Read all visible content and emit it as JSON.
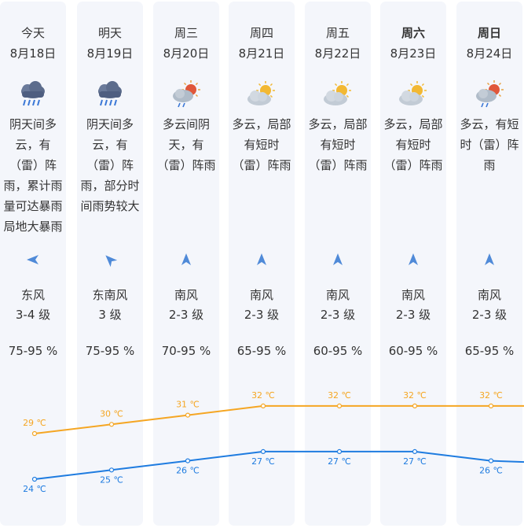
{
  "colors": {
    "high": "#f5a623",
    "low": "#1f7ce0",
    "column_bg": "#f4f6fb",
    "icon_cloud": "#b0bcc9",
    "rain": "#3a77d6",
    "arrow": "#4f8ad8"
  },
  "days": [
    {
      "day": "今天",
      "date": "8月18日",
      "icon": "rain-cloud-icon",
      "desc": "阴天间多云，有（雷）阵雨，累计雨量可达暴雨局地大暴雨",
      "wind": "东风",
      "level": "3-4 级",
      "humidity": "75-95 %",
      "high": 29,
      "low": 24,
      "high_label": "29 ℃",
      "low_label": "24 ℃",
      "wind_dir": "east"
    },
    {
      "day": "明天",
      "date": "8月19日",
      "icon": "rain-cloud-icon",
      "desc": "阴天间多云，有（雷）阵雨，部分时间雨势较大",
      "wind": "东南风",
      "level": "3 级",
      "humidity": "75-95 %",
      "high": 30,
      "low": 25,
      "high_label": "30 ℃",
      "low_label": "25 ℃",
      "wind_dir": "southeast"
    },
    {
      "day": "周三",
      "date": "8月20日",
      "icon": "sun-cloud-rain-icon",
      "desc": "多云间阴天，有（雷）阵雨",
      "wind": "南风",
      "level": "2-3 级",
      "humidity": "70-95 %",
      "high": 31,
      "low": 26,
      "high_label": "31 ℃",
      "low_label": "26 ℃",
      "wind_dir": "south"
    },
    {
      "day": "周四",
      "date": "8月21日",
      "icon": "sun-cloud-icon",
      "desc": "多云，局部有短时（雷）阵雨",
      "wind": "南风",
      "level": "2-3 级",
      "humidity": "65-95 %",
      "high": 32,
      "low": 27,
      "high_label": "32 ℃",
      "low_label": "27 ℃",
      "wind_dir": "south"
    },
    {
      "day": "周五",
      "date": "8月22日",
      "icon": "sun-cloud-icon",
      "desc": "多云，局部有短时（雷）阵雨",
      "wind": "南风",
      "level": "2-3 级",
      "humidity": "60-95 %",
      "high": 32,
      "low": 27,
      "high_label": "32 ℃",
      "low_label": "27 ℃",
      "wind_dir": "south"
    },
    {
      "day": "周六",
      "date": "8月23日",
      "icon": "sun-cloud-icon",
      "desc": "多云，局部有短时（雷）阵雨",
      "wind": "南风",
      "level": "2-3 级",
      "humidity": "60-95 %",
      "high": 32,
      "low": 27,
      "high_label": "32 ℃",
      "low_label": "27 ℃",
      "wind_dir": "south",
      "bold": true
    },
    {
      "day": "周日",
      "date": "8月24日",
      "icon": "sun-cloud-rain-icon",
      "desc": "多云，有短时（雷）阵雨",
      "wind": "南风",
      "level": "2-3 级",
      "humidity": "65-95 %",
      "high": 32,
      "low": 26,
      "high_label": "32 ℃",
      "low_label": "26 ℃",
      "wind_dir": "south",
      "bold": true
    }
  ]
}
